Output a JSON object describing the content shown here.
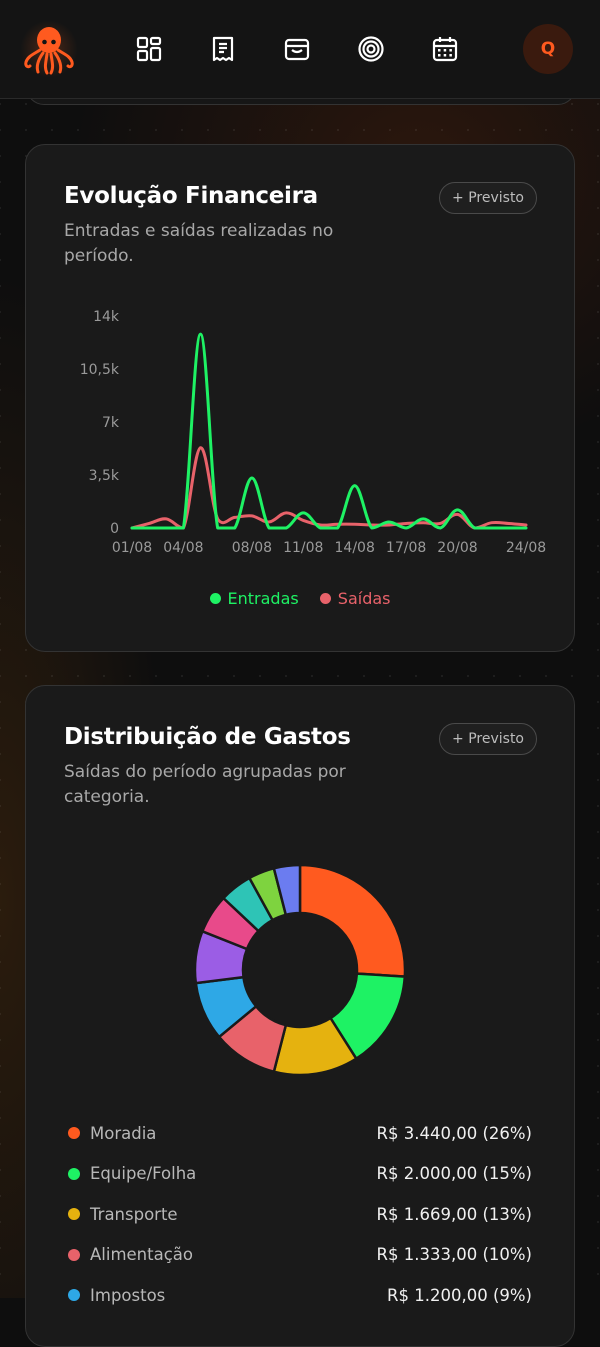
{
  "header": {
    "avatar_initial": "Q",
    "nav_icons": [
      "dashboard-icon",
      "receipt-icon",
      "wallet-icon",
      "target-icon",
      "calendar-icon"
    ],
    "accent_color": "#ff5a1f"
  },
  "evolucao": {
    "title": "Evolução Financeira",
    "subtitle": "Entradas e saídas realizadas no período.",
    "previsto_label": "+ Previsto",
    "legend": {
      "entradas": "Entradas",
      "saidas": "Saídas"
    },
    "colors": {
      "entradas": "#1ef264",
      "saidas": "#e8626a"
    }
  },
  "distribuicao": {
    "title": "Distribuição de Gastos",
    "subtitle": "Saídas do período agrupadas por categoria.",
    "previsto_label": "+ Previsto",
    "categories": [
      {
        "name": "Moradia",
        "value": "R$ 3.440,00 (26%)",
        "color": "#ff5a1f"
      },
      {
        "name": "Equipe/Folha",
        "value": "R$ 2.000,00 (15%)",
        "color": "#1ef264"
      },
      {
        "name": "Transporte",
        "value": "R$ 1.669,00 (13%)",
        "color": "#e5b20f"
      },
      {
        "name": "Alimentação",
        "value": "R$ 1.333,00 (10%)",
        "color": "#e8626a"
      },
      {
        "name": "Impostos",
        "value": "R$ 1.200,00 (9%)",
        "color": "#2ea8e6"
      }
    ]
  },
  "chart_data": [
    {
      "type": "line",
      "title": "Evolução Financeira",
      "subtitle": "Entradas e saídas realizadas no período.",
      "xlabel": "",
      "ylabel": "",
      "x_ticks": [
        "01/08",
        "04/08",
        "08/08",
        "11/08",
        "14/08",
        "17/08",
        "20/08",
        "24/08"
      ],
      "y_ticks": [
        "0",
        "3,5k",
        "7k",
        "10,5k",
        "14k"
      ],
      "ylim": [
        0,
        14000
      ],
      "legend_position": "bottom",
      "grid": false,
      "x": [
        1,
        2,
        3,
        4,
        5,
        6,
        7,
        8,
        9,
        10,
        11,
        12,
        13,
        14,
        15,
        16,
        17,
        18,
        19,
        20,
        21,
        22,
        23,
        24
      ],
      "series": [
        {
          "name": "Entradas",
          "color": "#1ef264",
          "values": [
            0,
            0,
            0,
            0,
            12800,
            0,
            0,
            3300,
            0,
            0,
            1000,
            0,
            0,
            2800,
            0,
            400,
            0,
            600,
            0,
            1200,
            0,
            0,
            0,
            0
          ]
        },
        {
          "name": "Saídas",
          "color": "#e8626a",
          "values": [
            0,
            300,
            600,
            0,
            5300,
            600,
            700,
            800,
            400,
            1000,
            500,
            200,
            250,
            250,
            200,
            200,
            300,
            350,
            300,
            900,
            0,
            350,
            300,
            200
          ]
        }
      ]
    },
    {
      "type": "pie",
      "title": "Distribuição de Gastos",
      "subtitle": "Saídas do período agrupadas por categoria.",
      "donut": true,
      "slices": [
        {
          "label": "Moradia",
          "value": 26,
          "amount": "R$ 3.440,00",
          "color": "#ff5a1f"
        },
        {
          "label": "Equipe/Folha",
          "value": 15,
          "amount": "R$ 2.000,00",
          "color": "#1ef264"
        },
        {
          "label": "Transporte",
          "value": 13,
          "amount": "R$ 1.669,00",
          "color": "#e5b20f"
        },
        {
          "label": "Alimentação",
          "value": 10,
          "amount": "R$ 1.333,00",
          "color": "#e8626a"
        },
        {
          "label": "Impostos",
          "value": 9,
          "amount": "R$ 1.200,00",
          "color": "#2ea8e6"
        },
        {
          "value": 8,
          "color": "#9b5de5"
        },
        {
          "value": 6,
          "color": "#e84a8a"
        },
        {
          "value": 5,
          "color": "#2ec4b6"
        },
        {
          "value": 4,
          "color": "#7ed33f"
        },
        {
          "value": 4,
          "color": "#6b7cf0"
        }
      ]
    }
  ]
}
